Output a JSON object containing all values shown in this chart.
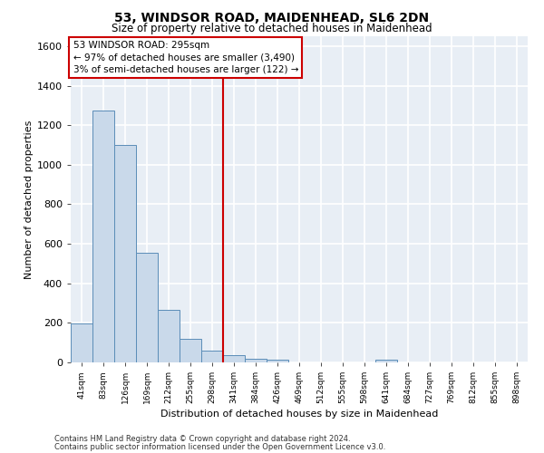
{
  "title1": "53, WINDSOR ROAD, MAIDENHEAD, SL6 2DN",
  "title2": "Size of property relative to detached houses in Maidenhead",
  "xlabel": "Distribution of detached houses by size in Maidenhead",
  "ylabel": "Number of detached properties",
  "categories": [
    "41sqm",
    "83sqm",
    "126sqm",
    "169sqm",
    "212sqm",
    "255sqm",
    "298sqm",
    "341sqm",
    "384sqm",
    "426sqm",
    "469sqm",
    "512sqm",
    "555sqm",
    "598sqm",
    "641sqm",
    "684sqm",
    "727sqm",
    "769sqm",
    "812sqm",
    "855sqm",
    "898sqm"
  ],
  "values": [
    195,
    1275,
    1100,
    555,
    265,
    120,
    60,
    35,
    20,
    15,
    0,
    0,
    0,
    0,
    15,
    0,
    0,
    0,
    0,
    0,
    0
  ],
  "bar_color": "#c9d9ea",
  "bar_edgecolor": "#5b8db8",
  "vline_color": "#cc0000",
  "annotation_text": "53 WINDSOR ROAD: 295sqm\n← 97% of detached houses are smaller (3,490)\n3% of semi-detached houses are larger (122) →",
  "annotation_box_color": "#cc0000",
  "ylim": [
    0,
    1650
  ],
  "yticks": [
    0,
    200,
    400,
    600,
    800,
    1000,
    1200,
    1400,
    1600
  ],
  "background_color": "#e8eef5",
  "grid_color": "#ffffff",
  "footer1": "Contains HM Land Registry data © Crown copyright and database right 2024.",
  "footer2": "Contains public sector information licensed under the Open Government Licence v3.0."
}
